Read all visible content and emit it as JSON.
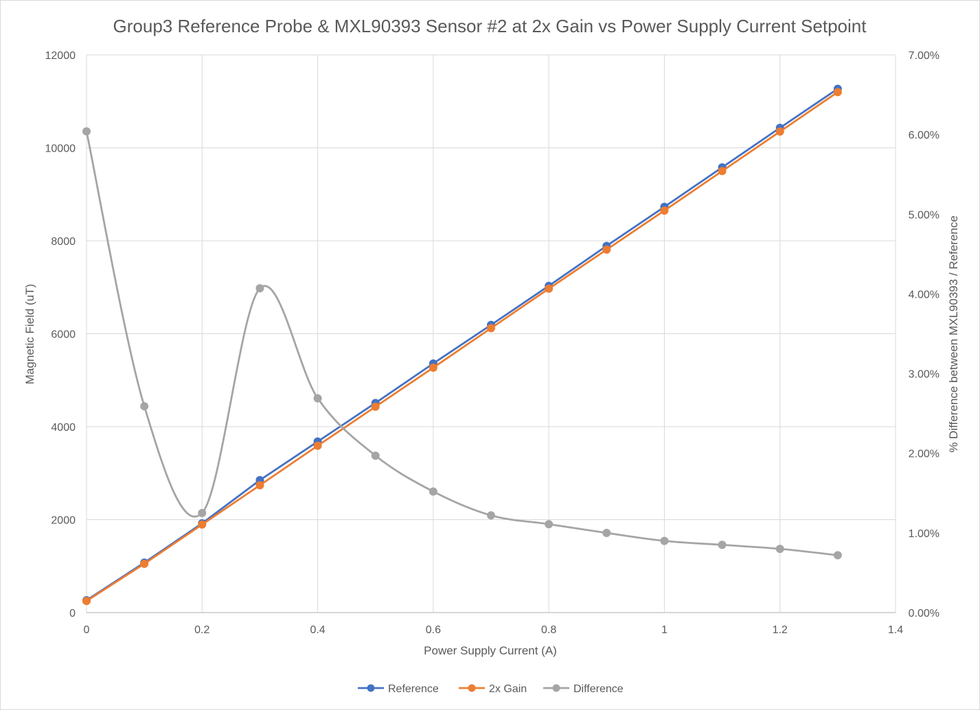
{
  "chart_data": {
    "type": "line",
    "title": "Group3 Reference Probe & MXL90393 Sensor #2 at 2x Gain vs Power Supply Current Setpoint",
    "xlabel": "Power Supply Current (A)",
    "ylabel": "Magnetic Field (uT)",
    "y2label": "% Difference between MXL90393 / Reference",
    "xlim": [
      0,
      1.4
    ],
    "ylim": [
      0,
      12000
    ],
    "y2lim": [
      0,
      0.07
    ],
    "x_ticks": [
      "0",
      "0.2",
      "0.4",
      "0.6",
      "0.8",
      "1",
      "1.2",
      "1.4"
    ],
    "y_ticks": [
      "0",
      "2000",
      "4000",
      "6000",
      "8000",
      "10000",
      "12000"
    ],
    "y2_ticks": [
      "0.00%",
      "1.00%",
      "2.00%",
      "3.00%",
      "4.00%",
      "5.00%",
      "6.00%",
      "7.00%"
    ],
    "grid": true,
    "legend_position": "bottom",
    "x": [
      0,
      0.1,
      0.2,
      0.3,
      0.4,
      0.5,
      0.6,
      0.7,
      0.8,
      0.9,
      1.0,
      1.1,
      1.2,
      1.3
    ],
    "series": [
      {
        "name": "Reference",
        "axis": "left",
        "color": "#4472C4",
        "values": [
          265,
          1075,
          1920,
          2850,
          3680,
          4510,
          5360,
          6190,
          7030,
          7890,
          8730,
          9580,
          10430,
          11270
        ]
      },
      {
        "name": "2x Gain",
        "axis": "left",
        "color": "#ED7D31",
        "values": [
          250,
          1050,
          1895,
          2740,
          3590,
          4430,
          5270,
          6120,
          6970,
          7810,
          8650,
          9500,
          10350,
          11200
        ]
      },
      {
        "name": "Difference",
        "axis": "right",
        "color": "#A5A5A5",
        "smooth": true,
        "values": [
          0.0604,
          0.0259,
          0.0125,
          0.0407,
          0.0269,
          0.0197,
          0.0152,
          0.0122,
          0.0111,
          0.01,
          0.009,
          0.0085,
          0.008,
          0.0072
        ]
      }
    ]
  }
}
